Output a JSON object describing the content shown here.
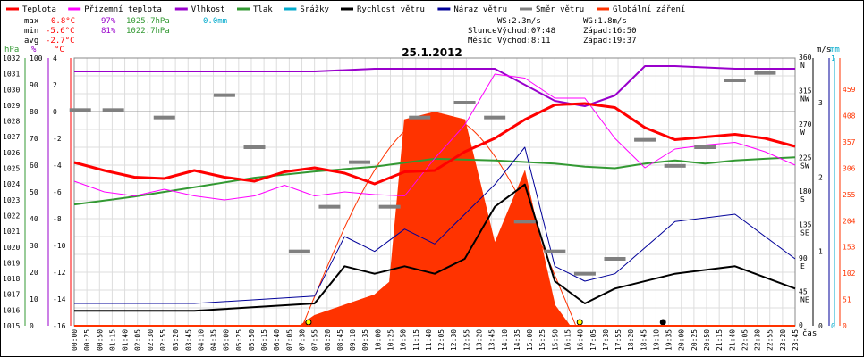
{
  "legend": [
    {
      "label": "Teplota",
      "color": "#ff0000"
    },
    {
      "label": "Přízemní teplota",
      "color": "#ff00ff"
    },
    {
      "label": "Vlhkost",
      "color": "#9900cc"
    },
    {
      "label": "Tlak",
      "color": "#339933"
    },
    {
      "label": "Srážky",
      "color": "#00aacc"
    },
    {
      "label": "Rychlost větru",
      "color": "#000000"
    },
    {
      "label": "Náraz větru",
      "color": "#000099"
    },
    {
      "label": "Směr větru",
      "color": "#808080"
    },
    {
      "label": "Globální záření",
      "color": "#ff3300"
    }
  ],
  "stats": {
    "max_label": "max",
    "max_temp": "0.8°C",
    "max_hum": "97%",
    "max_press": "1025.7hPa",
    "max_rain": "0.0mm",
    "min_label": "min",
    "min_temp": "-5.6°C",
    "min_hum": "81%",
    "min_press": "1022.7hPa",
    "avg_label": "avg",
    "avg_temp": "-2.7°C"
  },
  "wind_info": {
    "ws": "WS:2.3m/s",
    "wg": "WG:1.8m/s"
  },
  "sun_info": {
    "label": "Slunce",
    "rise": "Východ:07:48",
    "set": "Západ:16:50"
  },
  "moon_info": {
    "label": "Měsíc",
    "rise": "Východ:8:11",
    "set": "Západ:19:37"
  },
  "chart_data": {
    "type": "line",
    "title": "25.1.2012",
    "x_ticks": [
      "00:00",
      "00:25",
      "00:50",
      "01:15",
      "01:40",
      "02:05",
      "02:30",
      "02:55",
      "03:20",
      "03:45",
      "04:10",
      "04:35",
      "05:00",
      "05:25",
      "05:50",
      "06:15",
      "06:40",
      "07:05",
      "07:30",
      "07:55",
      "08:20",
      "08:45",
      "09:10",
      "09:35",
      "10:00",
      "10:25",
      "10:50",
      "11:15",
      "11:40",
      "12:05",
      "12:30",
      "12:55",
      "13:20",
      "13:45",
      "14:10",
      "14:35",
      "15:00",
      "15:25",
      "15:50",
      "16:15",
      "16:40",
      "17:05",
      "17:30",
      "17:55",
      "18:20",
      "18:45",
      "19:10",
      "19:35",
      "20:00",
      "20:25",
      "20:50",
      "21:15",
      "21:40",
      "22:05",
      "22:30",
      "22:55",
      "23:20",
      "23:45"
    ],
    "xlabel": "čas",
    "axes": {
      "pressure": {
        "unit": "hPa",
        "range": [
          1015,
          1032
        ],
        "ticks": [
          "1015",
          "1016",
          "1017",
          "1018",
          "1019",
          "1020",
          "1021",
          "1022",
          "1023",
          "1024",
          "1025",
          "1026",
          "1027",
          "1028",
          "1029",
          "1030",
          "1031",
          "1032"
        ]
      },
      "humidity": {
        "unit": "%",
        "range": [
          0,
          100
        ],
        "ticks": [
          "0",
          "10",
          "20",
          "30",
          "40",
          "50",
          "60",
          "70",
          "80",
          "90",
          "100"
        ]
      },
      "temperature": {
        "unit": "°C",
        "range": [
          -16,
          4
        ],
        "ticks": [
          "-16",
          "-14",
          "-12",
          "-10",
          "-8",
          "-6",
          "-4",
          "-2",
          "0",
          "2",
          "4"
        ]
      },
      "wind_dir": {
        "unit": "",
        "ticks": [
          "0",
          "45 NE",
          "90 E",
          "135 SE",
          "180 S",
          "225 SW",
          "270 W",
          "315 NW",
          "360 N"
        ]
      },
      "wind_speed": {
        "unit": "m/s",
        "ticks": [
          "0",
          "1",
          "2",
          "3"
        ]
      },
      "rain": {
        "unit": "mm",
        "ticks": [
          "0",
          "1"
        ]
      },
      "radiation": {
        "ticks": [
          "0",
          "51",
          "102",
          "153",
          "204",
          "255",
          "306",
          "357",
          "408",
          "459"
        ]
      }
    },
    "series": [
      {
        "name": "Teplota",
        "axis": "temperature",
        "x": [
          0,
          1,
          2,
          3,
          4,
          5,
          6,
          7,
          8,
          9,
          10,
          11,
          12,
          13,
          14,
          15,
          16,
          17,
          18,
          19,
          20,
          21,
          22,
          23,
          24
        ],
        "y": [
          -3.8,
          -4.4,
          -4.9,
          -5.0,
          -4.4,
          -4.9,
          -5.2,
          -4.5,
          -4.2,
          -4.6,
          -5.4,
          -4.5,
          -4.4,
          -3.0,
          -2.0,
          -0.6,
          0.5,
          0.6,
          0.3,
          -1.2,
          -2.1,
          -1.9,
          -1.7,
          -2.0,
          -2.6
        ]
      },
      {
        "name": "Přízemní teplota",
        "axis": "temperature",
        "x": [
          0,
          1,
          2,
          3,
          4,
          5,
          6,
          7,
          8,
          9,
          10,
          11,
          12,
          13,
          14,
          15,
          16,
          17,
          18,
          19,
          20,
          21,
          22,
          23,
          24
        ],
        "y": [
          -5.2,
          -6.0,
          -6.3,
          -5.8,
          -6.3,
          -6.6,
          -6.3,
          -5.5,
          -6.3,
          -6.0,
          -6.2,
          -6.3,
          -3.5,
          -1.0,
          2.8,
          2.5,
          1.0,
          1.0,
          -2.0,
          -4.2,
          -2.8,
          -2.5,
          -2.3,
          -3.0,
          -4.0
        ]
      },
      {
        "name": "Vlhkost",
        "axis": "humidity",
        "x": [
          0,
          2,
          4,
          6,
          8,
          10,
          12,
          14,
          15,
          16,
          17,
          18,
          19,
          20,
          22,
          24
        ],
        "y": [
          95,
          95,
          95,
          95,
          95,
          96,
          96,
          96,
          90,
          84,
          82,
          86,
          97,
          97,
          96,
          96
        ]
      },
      {
        "name": "Tlak",
        "axis": "pressure",
        "x": [
          0,
          2,
          4,
          6,
          8,
          10,
          12,
          14,
          15,
          16,
          17,
          18,
          19,
          20,
          21,
          22,
          23,
          24
        ],
        "y": [
          1022.7,
          1023.2,
          1023.8,
          1024.4,
          1024.8,
          1025.1,
          1025.6,
          1025.5,
          1025.4,
          1025.3,
          1025.1,
          1025.0,
          1025.3,
          1025.5,
          1025.3,
          1025.5,
          1025.6,
          1025.7
        ]
      },
      {
        "name": "Rychlost větru",
        "axis": "wind_speed",
        "x": [
          0,
          4,
          8,
          9,
          10,
          11,
          12,
          13,
          14,
          15,
          16,
          17,
          18,
          20,
          22,
          24
        ],
        "y": [
          0.2,
          0.2,
          0.3,
          0.8,
          0.7,
          0.8,
          0.7,
          0.9,
          1.6,
          1.9,
          0.6,
          0.3,
          0.5,
          0.7,
          0.8,
          0.5
        ]
      },
      {
        "name": "Náraz větru",
        "axis": "wind_speed",
        "x": [
          0,
          4,
          8,
          9,
          10,
          11,
          12,
          13,
          14,
          15,
          16,
          17,
          18,
          20,
          22,
          24
        ],
        "y": [
          0.3,
          0.3,
          0.4,
          1.2,
          1.0,
          1.3,
          1.1,
          1.5,
          1.9,
          2.4,
          0.8,
          0.6,
          0.7,
          1.4,
          1.5,
          0.9
        ]
      },
      {
        "name": "Globální záření",
        "axis": "radiation",
        "x": [
          7.5,
          8,
          9,
          10,
          10.5,
          11,
          12,
          13,
          14,
          15,
          16,
          16.5
        ],
        "y": [
          0,
          20,
          40,
          60,
          85,
          400,
          415,
          400,
          160,
          300,
          40,
          0
        ]
      },
      {
        "name": "Směr větru",
        "axis": "wind_dir",
        "x": [
          0.2,
          1.3,
          3,
          5,
          6,
          7.5,
          8.5,
          9.5,
          10.5,
          11.5,
          13,
          14,
          15,
          16,
          17,
          18,
          19,
          20,
          21,
          22,
          23
        ],
        "y": [
          290,
          290,
          280,
          310,
          240,
          100,
          160,
          220,
          160,
          280,
          300,
          280,
          140,
          100,
          70,
          90,
          250,
          215,
          240,
          330,
          340
        ]
      }
    ],
    "grid": true
  }
}
